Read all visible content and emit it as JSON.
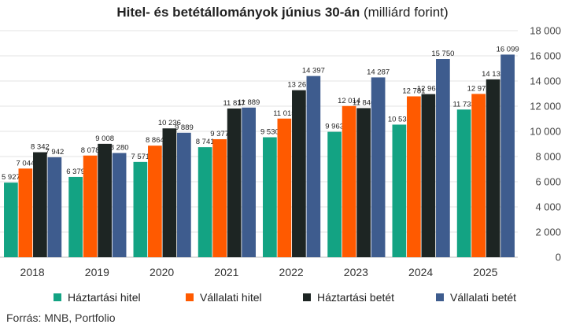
{
  "title_bold": "Hitel- és betétállományok június 30-án",
  "title_rest": " (milliárd forint)",
  "source": "Forrás: MNB, Portfolio",
  "chart_data": {
    "type": "bar",
    "categories": [
      "2018",
      "2019",
      "2020",
      "2021",
      "2022",
      "2023",
      "2024",
      "2025"
    ],
    "ylim": [
      0,
      18000
    ],
    "yticks": [
      "0",
      "2 000",
      "4 000",
      "6 000",
      "8 000",
      "10 000",
      "12 000",
      "14 000",
      "16 000",
      "18 000"
    ],
    "grid": true,
    "legend_position": "bottom",
    "series": [
      {
        "name": "Háztartási hitel",
        "color": "#13a383",
        "values": [
          5927,
          6379,
          7571,
          8741,
          9530,
          9963,
          10535,
          11733
        ],
        "labels": [
          "5 927",
          "6 379",
          "7 571",
          "8 741",
          "9 530",
          "9 963",
          "10 535",
          "11 733"
        ]
      },
      {
        "name": "Vállalati hitel",
        "color": "#ff5a00",
        "values": [
          7044,
          8078,
          8864,
          9377,
          11015,
          12014,
          12781,
          12975
        ],
        "labels": [
          "7 044",
          "8 078",
          "8 864",
          "9 377",
          "11 015",
          "12 014",
          "12 781",
          "12 975"
        ]
      },
      {
        "name": "Háztartási betét",
        "color": "#1d2523",
        "values": [
          8342,
          9008,
          10236,
          11817,
          13269,
          11846,
          12960,
          14132
        ],
        "labels": [
          "8 342",
          "9 008",
          "10 236",
          "11 817",
          "13 269",
          "11 846",
          "12 960",
          "14 132"
        ]
      },
      {
        "name": "Vállalati betét",
        "color": "#3e5c8e",
        "values": [
          7942,
          8280,
          9889,
          11889,
          14397,
          14287,
          15750,
          16099
        ],
        "labels": [
          "7 942",
          "8 280",
          "9 889",
          "11 889",
          "14 397",
          "14 287",
          "15 750",
          "16 099"
        ]
      }
    ]
  }
}
